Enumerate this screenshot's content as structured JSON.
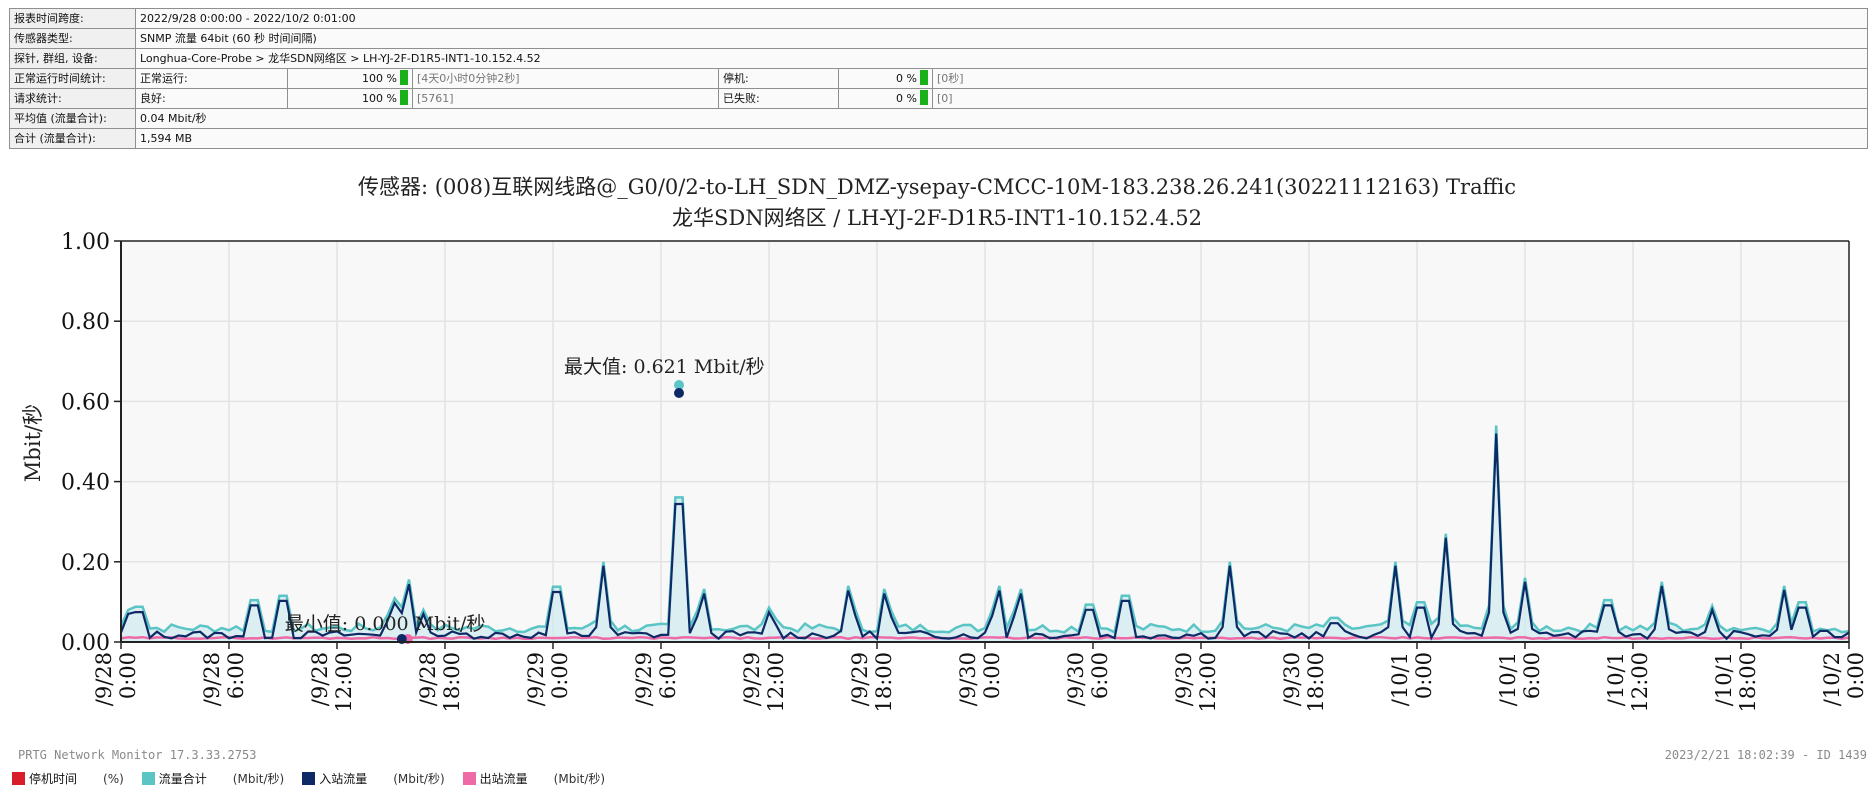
{
  "info": {
    "time_span_label": "报表时间跨度:",
    "time_span_value": "2022/9/28 0:00:00 - 2022/10/2 0:01:00",
    "sensor_type_label": "传感器类型:",
    "sensor_type_value": "SNMP 流量 64bit (60 秒 时间间隔)",
    "path_label": "探针, 群组, 设备:",
    "path_value": "Longhua-Core-Probe > 龙华SDN网络区 > LH-YJ-2F-D1R5-INT1-10.152.4.52",
    "uptime_label": "正常运行时间统计:",
    "uptime_ok_label": "正常运行:",
    "uptime_ok_pct": "100 %",
    "uptime_ok_detail": "[4天0小时0分钟2秒]",
    "uptime_down_label": "停机:",
    "uptime_down_pct": "0 %",
    "uptime_down_detail": "[0秒]",
    "req_label": "请求统计:",
    "req_good_label": "良好:",
    "req_good_pct": "100 %",
    "req_good_detail": "[5761]",
    "req_fail_label": "已失败:",
    "req_fail_pct": "0 %",
    "req_fail_detail": "[0]",
    "avg_label": "平均值 (流量合计):",
    "avg_value": "0.04 Mbit/秒",
    "total_label": "合计 (流量合计):",
    "total_value": "1,594 MB",
    "uptime_ok_fraction": 1.0,
    "uptime_down_fraction": 0.0,
    "req_good_fraction": 1.0,
    "req_fail_fraction": 0.0
  },
  "chart_data": {
    "type": "line",
    "title": "传感器: (008)互联网线路@_G0/0/2-to-LH_SDN_DMZ-ysepay-CMCC-10M-183.238.26.241(30221112163) Traffic",
    "subtitle": "龙华SDN网络区 / LH-YJ-2F-D1R5-INT1-10.152.4.52",
    "ylabel": "Mbit/秒",
    "ylim": [
      0,
      1.0
    ],
    "yticks": [
      "0.00",
      "0.20",
      "0.40",
      "0.60",
      "0.80",
      "1.00"
    ],
    "xlim_hours": [
      0,
      96
    ],
    "x_ticks": [
      {
        "date": "/9/28",
        "time": "0:00"
      },
      {
        "date": "/9/28",
        "time": "6:00"
      },
      {
        "date": "/9/28",
        "time": "12:00"
      },
      {
        "date": "/9/28",
        "time": "18:00"
      },
      {
        "date": "/9/29",
        "time": "0:00"
      },
      {
        "date": "/9/29",
        "time": "6:00"
      },
      {
        "date": "/9/29",
        "time": "12:00"
      },
      {
        "date": "/9/29",
        "time": "18:00"
      },
      {
        "date": "/9/30",
        "time": "0:00"
      },
      {
        "date": "/9/30",
        "time": "6:00"
      },
      {
        "date": "/9/30",
        "time": "12:00"
      },
      {
        "date": "/9/30",
        "time": "18:00"
      },
      {
        "date": "/10/1",
        "time": "0:00"
      },
      {
        "date": "/10/1",
        "time": "6:00"
      },
      {
        "date": "/10/1",
        "time": "12:00"
      },
      {
        "date": "/10/1",
        "time": "18:00"
      },
      {
        "date": "/10/2",
        "time": "0:00"
      }
    ],
    "max_annotation": {
      "text": "最大值: 0.621 Mbit/秒",
      "x": 31,
      "y": 0.621
    },
    "min_annotation": {
      "text": "最小值: 0.000 Mbit/秒",
      "x": 15.6,
      "y": 0.0
    },
    "series": [
      {
        "name": "流量合计",
        "unit": "(Mbit/秒)",
        "color": "#5bc5c5",
        "spikes": [
          [
            0.4,
            0.08
          ],
          [
            1,
            0.13
          ],
          [
            7.4,
            0.16
          ],
          [
            9,
            0.18
          ],
          [
            15.1,
            0.13
          ],
          [
            15.9,
            0.19
          ],
          [
            16.8,
            0.08
          ],
          [
            24.2,
            0.22
          ],
          [
            26.8,
            0.2
          ],
          [
            31,
            0.621
          ],
          [
            32.3,
            0.16
          ],
          [
            36.1,
            0.1
          ],
          [
            40.5,
            0.17
          ],
          [
            42.5,
            0.16
          ],
          [
            48.7,
            0.17
          ],
          [
            49.9,
            0.16
          ],
          [
            53.8,
            0.14
          ],
          [
            55.8,
            0.18
          ],
          [
            61.6,
            0.2
          ],
          [
            67.4,
            0.08
          ],
          [
            70.8,
            0.2
          ],
          [
            72.2,
            0.15
          ],
          [
            73.6,
            0.27
          ],
          [
            76.4,
            0.54
          ],
          [
            78,
            0.16
          ],
          [
            82.6,
            0.16
          ],
          [
            85.6,
            0.15
          ],
          [
            88.4,
            0.09
          ],
          [
            92.4,
            0.14
          ],
          [
            93.4,
            0.15
          ]
        ],
        "baseline": 0.035
      },
      {
        "name": "入站流量",
        "unit": "(Mbit/秒)",
        "color": "#0d2a66",
        "spikes": [
          [
            0.4,
            0.07
          ],
          [
            1,
            0.12
          ],
          [
            7.4,
            0.15
          ],
          [
            9,
            0.17
          ],
          [
            15.1,
            0.12
          ],
          [
            15.9,
            0.18
          ],
          [
            16.8,
            0.07
          ],
          [
            24.2,
            0.21
          ],
          [
            26.8,
            0.19
          ],
          [
            31,
            0.605
          ],
          [
            32.3,
            0.15
          ],
          [
            36.1,
            0.09
          ],
          [
            40.5,
            0.16
          ],
          [
            42.5,
            0.15
          ],
          [
            48.7,
            0.16
          ],
          [
            49.9,
            0.15
          ],
          [
            53.8,
            0.13
          ],
          [
            55.8,
            0.17
          ],
          [
            61.6,
            0.19
          ],
          [
            67.4,
            0.07
          ],
          [
            70.8,
            0.19
          ],
          [
            72.2,
            0.14
          ],
          [
            73.6,
            0.26
          ],
          [
            76.4,
            0.52
          ],
          [
            78,
            0.15
          ],
          [
            82.6,
            0.15
          ],
          [
            85.6,
            0.14
          ],
          [
            88.4,
            0.08
          ],
          [
            92.4,
            0.13
          ],
          [
            93.4,
            0.14
          ]
        ],
        "baseline": 0.018
      },
      {
        "name": "出站流量",
        "unit": "(Mbit/秒)",
        "color": "#ee6aa7",
        "baseline": 0.01
      }
    ],
    "legend": [
      {
        "name": "停机时间",
        "unit": "(%)",
        "color": "#d81e2a"
      },
      {
        "name": "流量合计",
        "unit": "(Mbit/秒)",
        "color": "#5bc5c5"
      },
      {
        "name": "入站流量",
        "unit": "(Mbit/秒)",
        "color": "#0d2a66"
      },
      {
        "name": "出站流量",
        "unit": "(Mbit/秒)",
        "color": "#ee6aa7"
      }
    ]
  },
  "footer": {
    "left": "PRTG Network Monitor 17.3.33.2753",
    "right": "2023/2/21 18:02:39 - ID 1439"
  }
}
